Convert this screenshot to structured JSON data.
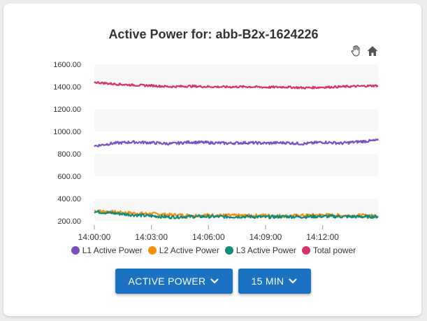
{
  "chart": {
    "title": "Active Power for: abb-B2x-1624226"
  },
  "toolbar": {
    "pan_icon": "hand-pan-icon",
    "home_icon": "home-icon"
  },
  "controls": {
    "metric_label": "ACTIVE POWER",
    "range_label": "15 MIN",
    "chevron_icon": "chevron-down-icon",
    "button_color": "#1b72c0"
  },
  "chart_data": {
    "type": "line",
    "title": "Active Power for: abb-B2x-1624226",
    "xlabel": "",
    "ylabel": "",
    "x_range": [
      "14:00:00",
      "14:14:55"
    ],
    "x_ticks": [
      "14:00:00",
      "14:03:00",
      "14:06:00",
      "14:09:00",
      "14:12:00"
    ],
    "y_ticks": [
      "200.00",
      "400.00",
      "600.00",
      "800.00",
      "1000.00",
      "1200.00",
      "1400.00",
      "1600.00"
    ],
    "ylim": [
      150,
      1600
    ],
    "grid": "horizontal bands",
    "legend_position": "bottom",
    "x": [
      "14:00:00",
      "14:01:00",
      "14:02:00",
      "14:03:00",
      "14:04:00",
      "14:05:00",
      "14:06:00",
      "14:07:00",
      "14:08:00",
      "14:09:00",
      "14:10:00",
      "14:11:00",
      "14:12:00",
      "14:13:00",
      "14:14:00",
      "14:14:55"
    ],
    "series": [
      {
        "name": "L1 Active Power",
        "color": "#7d4fc0",
        "values": [
          870,
          895,
          905,
          900,
          890,
          905,
          900,
          895,
          900,
          895,
          900,
          890,
          905,
          895,
          910,
          920
        ]
      },
      {
        "name": "L2 Active Power",
        "color": "#f4900c",
        "values": [
          290,
          280,
          270,
          265,
          255,
          250,
          252,
          250,
          248,
          250,
          245,
          250,
          255,
          248,
          250,
          245
        ]
      },
      {
        "name": "L3 Active Power",
        "color": "#138a78",
        "values": [
          285,
          270,
          255,
          245,
          235,
          240,
          240,
          238,
          240,
          235,
          240,
          238,
          242,
          240,
          238,
          240
        ]
      },
      {
        "name": "Total power",
        "color": "#d6336c",
        "values": [
          1440,
          1425,
          1415,
          1410,
          1400,
          1405,
          1400,
          1398,
          1400,
          1395,
          1398,
          1390,
          1395,
          1400,
          1405,
          1410
        ]
      }
    ]
  }
}
